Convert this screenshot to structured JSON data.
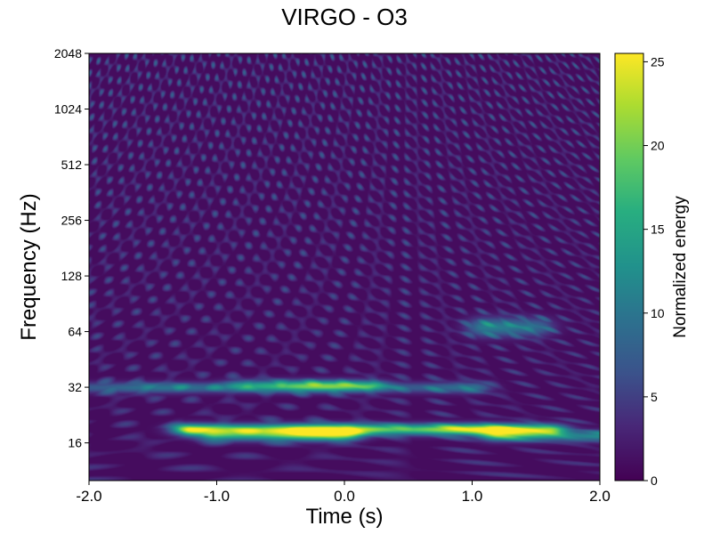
{
  "chart_data": {
    "type": "heatmap",
    "title": "VIRGO - O3",
    "xlabel": "Time (s)",
    "ylabel": "Frequency (Hz)",
    "xlim": [
      -2.0,
      2.0
    ],
    "ylim": [
      10,
      2048
    ],
    "y_scale": "log2",
    "x_ticks": [
      {
        "value": -2.0,
        "label": "-2.0"
      },
      {
        "value": -1.0,
        "label": "-1.0"
      },
      {
        "value": 0.0,
        "label": "0.0"
      },
      {
        "value": 1.0,
        "label": "1.0"
      },
      {
        "value": 2.0,
        "label": "2.0"
      }
    ],
    "y_ticks": [
      {
        "value": 16,
        "label": "16"
      },
      {
        "value": 32,
        "label": "32"
      },
      {
        "value": 64,
        "label": "64"
      },
      {
        "value": 128,
        "label": "128"
      },
      {
        "value": 256,
        "label": "256"
      },
      {
        "value": 512,
        "label": "512"
      },
      {
        "value": 1024,
        "label": "1024"
      },
      {
        "value": 2048,
        "label": "2048"
      }
    ],
    "colorbar": {
      "label": "Normalized energy",
      "colormap": "viridis",
      "range": [
        0,
        25.5
      ],
      "ticks": [
        {
          "value": 0,
          "label": "0"
        },
        {
          "value": 5,
          "label": "5"
        },
        {
          "value": 10,
          "label": "10"
        },
        {
          "value": 15,
          "label": "15"
        },
        {
          "value": 20,
          "label": "20"
        },
        {
          "value": 25,
          "label": "25"
        }
      ]
    },
    "features": [
      {
        "t_start": -1.2,
        "t_end": 1.6,
        "frequency": 19,
        "energy": 25,
        "shape": "horizontal-band"
      },
      {
        "t_start": -1.0,
        "t_end": 0.0,
        "frequency": 17.5,
        "energy": 16,
        "shape": "horizontal-band"
      },
      {
        "t_start": 1.2,
        "t_end": 2.0,
        "frequency": 17.5,
        "energy": 14,
        "shape": "horizontal-band"
      },
      {
        "t_start": -2.0,
        "t_end": 1.0,
        "frequency": 32,
        "energy": 9,
        "shape": "horizontal-band"
      },
      {
        "t_start": -0.8,
        "t_end": 0.2,
        "frequency": 33,
        "energy": 12,
        "shape": "horizontal-band"
      },
      {
        "t_start": 1.1,
        "t_end": 1.5,
        "frequency": 68,
        "energy": 10,
        "shape": "blob"
      },
      {
        "t_start": -2.0,
        "t_end": 2.0,
        "frequency": 150,
        "energy": 4,
        "shape": "noise-floor"
      }
    ],
    "background_energy": 1.5,
    "grid": false
  },
  "colors": {
    "viridis_0": "#440154",
    "viridis_25": "#3b528b",
    "viridis_50": "#21918c",
    "viridis_75": "#5ec962",
    "viridis_100": "#fde725"
  }
}
